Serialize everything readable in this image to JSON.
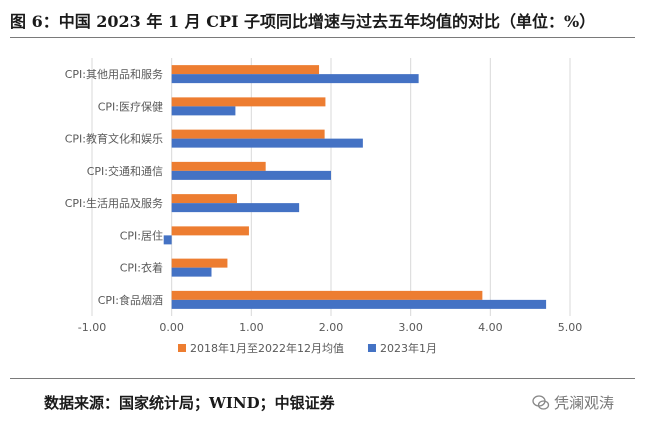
{
  "title": "图 6：中国 2023 年 1 月 CPI 子项同比增速与过去五年均值的对比（单位：%）",
  "source": "数据来源：国家统计局；WIND；中银证券",
  "watermark": "凭澜观涛",
  "colors": {
    "series_avg": "#ED7D31",
    "series_jan": "#4472C4",
    "grid": "#D9D9D9",
    "axis_text": "#595959"
  },
  "chart_data": {
    "type": "bar",
    "orientation": "horizontal",
    "categories": [
      "CPI:其他用品和服务",
      "CPI:医疗保健",
      "CPI:教育文化和娱乐",
      "CPI:交通和通信",
      "CPI:生活用品及服务",
      "CPI:居住",
      "CPI:衣着",
      "CPI:食品烟酒"
    ],
    "series": [
      {
        "name": "2018年1月至2022年12月均值",
        "values": [
          1.85,
          1.93,
          1.92,
          1.18,
          0.82,
          0.97,
          0.7,
          3.9
        ]
      },
      {
        "name": "2023年1月",
        "values": [
          3.1,
          0.8,
          2.4,
          2.0,
          1.6,
          -0.1,
          0.5,
          4.7
        ]
      }
    ],
    "xlim": [
      -1.0,
      5.0
    ],
    "xticks": [
      "-1.00",
      "0.00",
      "1.00",
      "2.00",
      "3.00",
      "4.00",
      "5.00"
    ],
    "xtick_values": [
      -1,
      0,
      1,
      2,
      3,
      4,
      5
    ],
    "grid": true,
    "legend_position": "bottom"
  }
}
